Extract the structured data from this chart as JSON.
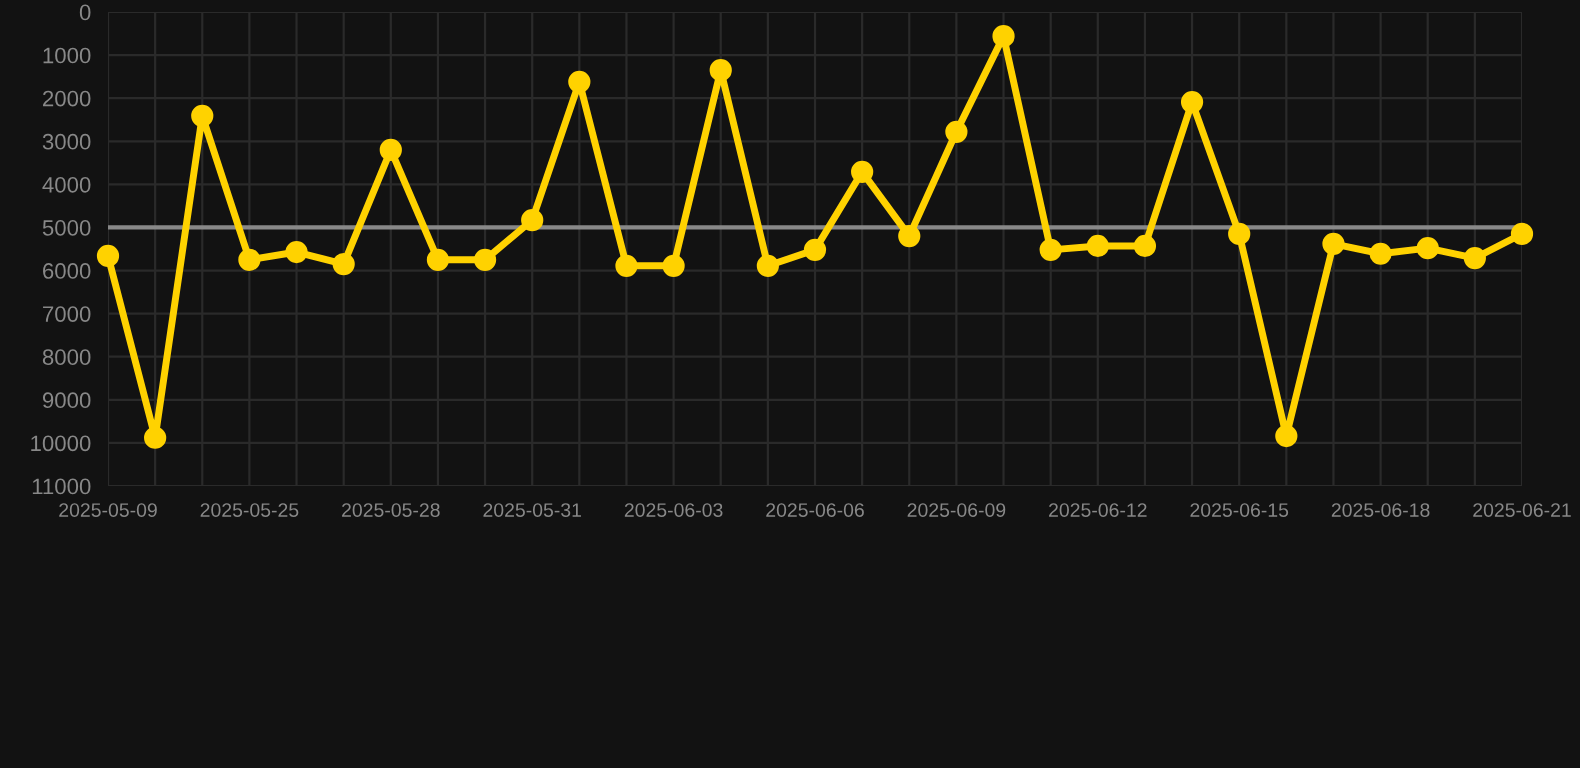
{
  "chart_data": {
    "type": "line",
    "categories": [
      "2025-05-09",
      null,
      null,
      "2025-05-25",
      null,
      null,
      "2025-05-28",
      null,
      null,
      "2025-05-31",
      null,
      null,
      "2025-06-03",
      null,
      null,
      "2025-06-06",
      null,
      null,
      "2025-06-09",
      null,
      null,
      "2025-06-12",
      null,
      null,
      "2025-06-15",
      null,
      null,
      "2025-06-18",
      null,
      null,
      "2025-06-21"
    ],
    "series": [
      {
        "color": "#ffd200",
        "values": [
          5660,
          9880,
          2410,
          5750,
          5570,
          5850,
          3200,
          5750,
          5750,
          4830,
          1620,
          5890,
          5890,
          1350,
          5890,
          5520,
          3710,
          5200,
          2780,
          560,
          5520,
          5430,
          5430,
          2090,
          5150,
          9840,
          5380,
          5610,
          5480,
          5710,
          5150
        ]
      }
    ],
    "ylim": [
      11000,
      0
    ],
    "yticks": [
      0,
      1000,
      2000,
      3000,
      4000,
      5000,
      6000,
      7000,
      8000,
      9000,
      10000,
      11000
    ],
    "ref_lines": [
      {
        "axis": "y",
        "value": 5000,
        "color": "#888888"
      }
    ],
    "grid": true,
    "marker": "circle",
    "line_style": "solid"
  }
}
